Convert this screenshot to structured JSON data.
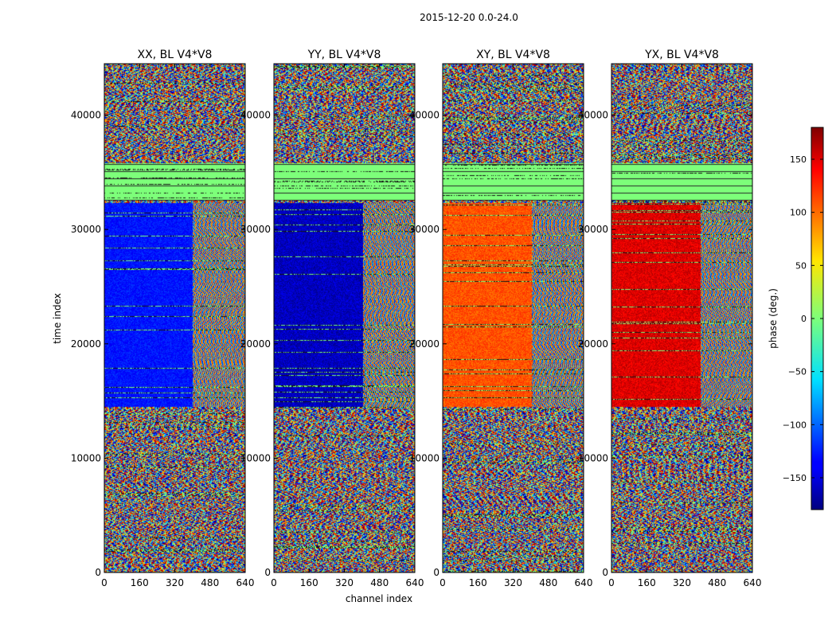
{
  "suptitle": "2015-12-20 0.0-24.0",
  "chart_data": {
    "type": "heatmap",
    "title": "2015-12-20 0.0-24.0",
    "xlabel": "channel index",
    "ylabel": "time index",
    "xlim": [
      0,
      640
    ],
    "ylim": [
      0,
      44500
    ],
    "x_ticks": [
      0,
      160,
      320,
      480,
      640
    ],
    "y_ticks": [
      0,
      10000,
      20000,
      30000,
      40000
    ],
    "x_tick_labels": [
      "0",
      "160",
      "320",
      "480",
      "640"
    ],
    "y_tick_labels": [
      "0",
      "10000",
      "20000",
      "30000",
      "40000"
    ],
    "colormap": "jet",
    "panels": [
      {
        "title": "XX, BL V4*V8",
        "calibrated_phase_deg": -130,
        "calibrated_band_end_channel": 400
      },
      {
        "title": "YY, BL V4*V8",
        "calibrated_phase_deg": -160,
        "calibrated_band_end_channel": 405
      },
      {
        "title": "XY, BL V4*V8",
        "calibrated_phase_deg": 110,
        "calibrated_band_end_channel": 405
      },
      {
        "title": "YX, BL V4*V8",
        "calibrated_phase_deg": 150,
        "calibrated_band_end_channel": 405
      }
    ],
    "flagged_time_range": [
      32500,
      35800
    ],
    "calibrated_time_range": [
      14500,
      32300
    ],
    "colorbar": {
      "label": "phase (deg.)",
      "range": [
        -180,
        180
      ],
      "ticks": [
        150,
        100,
        50,
        0,
        -50,
        -100,
        -150
      ],
      "tick_labels": [
        "150",
        "100",
        "50",
        "0",
        "−50",
        "−100",
        "−150"
      ]
    }
  }
}
